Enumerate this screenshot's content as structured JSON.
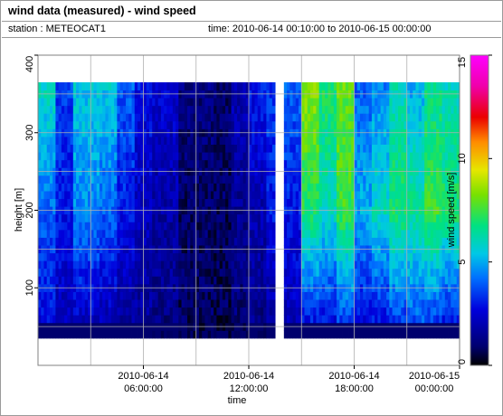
{
  "window": {
    "title": "wind data (measured) - wind speed",
    "station_label": "station : METEOCAT1",
    "time_label": "time: 2010-06-14 00:10:00 to 2010-06-15 00:00:00"
  },
  "chart_data": {
    "type": "heatmap",
    "title": "wind data (measured) - wind speed",
    "xlabel": "time",
    "ylabel": "height [m]",
    "colorbar_label": "wind speed [m/s]",
    "ylim": [
      0,
      400
    ],
    "yticks": [
      100,
      200,
      300,
      400
    ],
    "ytick_labels": [
      "100",
      "200",
      "300",
      "400"
    ],
    "xlim_hours": [
      0,
      24
    ],
    "xticks": [
      {
        "hour": 6,
        "line1": "2010-06-14",
        "line2": "06:00:00"
      },
      {
        "hour": 12,
        "line1": "2010-06-14",
        "line2": "12:00:00"
      },
      {
        "hour": 18,
        "line1": "2010-06-14",
        "line2": "18:00:00"
      },
      {
        "hour": 24,
        "line1": "2010-06-15",
        "line2": "00:00:00"
      }
    ],
    "colorbar": {
      "range": [
        0,
        15
      ],
      "ticks": [
        0,
        5,
        10,
        15
      ],
      "tick_labels": [
        "0",
        "5",
        "10",
        "15"
      ]
    },
    "grid": true,
    "rows_height_m": [
      40,
      50,
      60,
      70,
      80,
      90,
      100,
      110,
      120,
      130,
      140,
      150,
      160,
      170,
      180,
      190,
      200,
      210,
      220,
      230,
      240,
      250,
      260,
      270,
      280,
      290,
      300,
      310,
      320,
      330,
      340,
      350,
      360
    ],
    "time_blocks": [
      {
        "from_hour": 0.0,
        "to_hour": 1.0,
        "top_m": 360,
        "speed_low": 2.5,
        "speed_mid": 4.0,
        "speed_top": 6.0
      },
      {
        "from_hour": 1.0,
        "to_hour": 2.0,
        "top_m": 360,
        "speed_low": 2.0,
        "speed_mid": 3.0,
        "speed_top": 3.5
      },
      {
        "from_hour": 2.0,
        "to_hour": 3.5,
        "top_m": 360,
        "speed_low": 2.0,
        "speed_mid": 4.5,
        "speed_top": 5.5
      },
      {
        "from_hour": 3.5,
        "to_hour": 4.5,
        "top_m": 360,
        "speed_low": 1.8,
        "speed_mid": 4.0,
        "speed_top": 5.5
      },
      {
        "from_hour": 4.5,
        "to_hour": 5.5,
        "top_m": 360,
        "speed_low": 1.5,
        "speed_mid": 3.0,
        "speed_top": 4.0
      },
      {
        "from_hour": 5.5,
        "to_hour": 6.5,
        "top_m": 360,
        "speed_low": 1.5,
        "speed_mid": 2.2,
        "speed_top": 3.0
      },
      {
        "from_hour": 6.5,
        "to_hour": 8.0,
        "top_m": 360,
        "speed_low": 1.2,
        "speed_mid": 1.8,
        "speed_top": 2.5
      },
      {
        "from_hour": 8.0,
        "to_hour": 10.0,
        "top_m": 360,
        "speed_low": 0.8,
        "speed_mid": 0.9,
        "speed_top": 1.2
      },
      {
        "from_hour": 10.0,
        "to_hour": 11.0,
        "top_m": 360,
        "speed_low": 0.7,
        "speed_mid": 0.8,
        "speed_top": 1.0
      },
      {
        "from_hour": 11.0,
        "to_hour": 12.0,
        "top_m": 360,
        "speed_low": 1.0,
        "speed_mid": 1.5,
        "speed_top": 2.0
      },
      {
        "from_hour": 12.0,
        "to_hour": 13.0,
        "top_m": 360,
        "speed_low": 1.2,
        "speed_mid": 2.0,
        "speed_top": 3.0
      },
      {
        "from_hour": 13.0,
        "to_hour": 13.5,
        "top_m": 360,
        "speed_low": 1.5,
        "speed_mid": 3.0,
        "speed_top": 3.5
      },
      {
        "from_hour": 14.0,
        "to_hour": 15.0,
        "top_m": 360,
        "speed_low": 2.0,
        "speed_mid": 3.0,
        "speed_top": 4.0
      },
      {
        "from_hour": 15.0,
        "to_hour": 16.0,
        "top_m": 360,
        "speed_low": 2.5,
        "speed_mid": 7.0,
        "speed_top": 8.5
      },
      {
        "from_hour": 16.0,
        "to_hour": 17.0,
        "top_m": 360,
        "speed_low": 2.5,
        "speed_mid": 6.0,
        "speed_top": 7.0
      },
      {
        "from_hour": 17.0,
        "to_hour": 18.0,
        "top_m": 360,
        "speed_low": 3.0,
        "speed_mid": 7.5,
        "speed_top": 8.0
      },
      {
        "from_hour": 18.0,
        "to_hour": 19.0,
        "top_m": 360,
        "speed_low": 2.5,
        "speed_mid": 5.0,
        "speed_top": 4.0
      },
      {
        "from_hour": 19.0,
        "to_hour": 20.0,
        "top_m": 360,
        "speed_low": 2.5,
        "speed_mid": 6.0,
        "speed_top": 4.5
      },
      {
        "from_hour": 20.0,
        "to_hour": 21.0,
        "top_m": 360,
        "speed_low": 3.0,
        "speed_mid": 7.0,
        "speed_top": 6.0
      },
      {
        "from_hour": 21.0,
        "to_hour": 22.0,
        "top_m": 360,
        "speed_low": 3.5,
        "speed_mid": 6.5,
        "speed_top": 5.0
      },
      {
        "from_hour": 22.0,
        "to_hour": 23.0,
        "top_m": 360,
        "speed_low": 3.0,
        "speed_mid": 7.5,
        "speed_top": 6.5
      },
      {
        "from_hour": 23.0,
        "to_hour": 24.0,
        "top_m": 360,
        "speed_low": 2.5,
        "speed_mid": 7.0,
        "speed_top": 6.0
      }
    ]
  }
}
